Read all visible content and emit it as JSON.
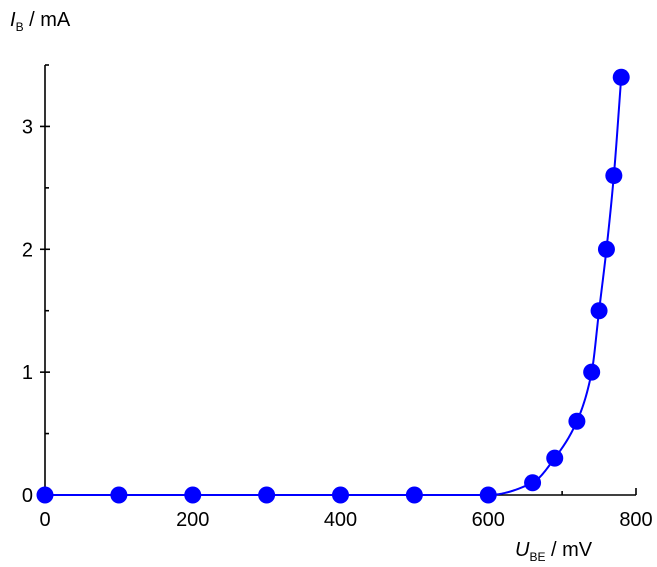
{
  "chart_data": {
    "type": "scatter",
    "x_axis": {
      "symbol": "U",
      "subscript": "BE",
      "unit": " / mV",
      "range": [
        0,
        800
      ],
      "ticks": [
        0,
        200,
        400,
        600,
        800
      ],
      "tick_labels": [
        "0",
        "200",
        "400",
        "600",
        "800"
      ]
    },
    "y_axis": {
      "symbol": "I",
      "subscript": "B",
      "unit": " / mA",
      "range": [
        0,
        3.5
      ],
      "ticks": [
        0,
        1,
        2,
        3
      ],
      "tick_labels": [
        "0",
        "1",
        "2",
        "3"
      ]
    },
    "series": [
      {
        "color": "#0000ff",
        "x": [
          0,
          100,
          200,
          300,
          400,
          500,
          600,
          660,
          690,
          720,
          740,
          750,
          760,
          770,
          780
        ],
        "y": [
          0,
          0,
          0,
          0,
          0,
          0,
          0,
          0.1,
          0.3,
          0.6,
          1.0,
          1.5,
          2.0,
          2.6,
          3.4
        ]
      }
    ],
    "grid": false,
    "legend": "none"
  }
}
